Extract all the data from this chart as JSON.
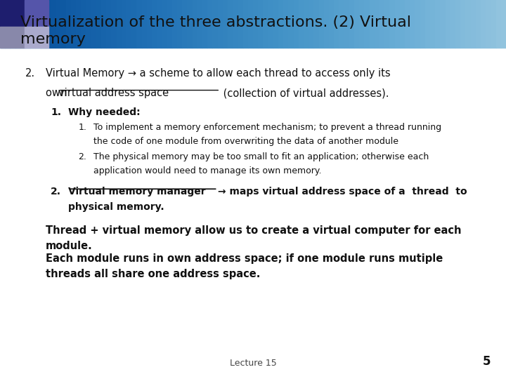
{
  "title_line1": "Virtualization of the three abstractions. (2) Virtual",
  "title_line2": "memory",
  "background_color": "#ffffff",
  "footer_text": "Lecture 15",
  "page_number": "5",
  "item2_label": "2.",
  "item2_text_line1": "Virtual Memory → a scheme to allow each thread to access only its",
  "item2_text_own": "own ",
  "item2_underline": "virtual address space",
  "item2_text_rest": " (collection of virtual addresses).",
  "sub1_label": "1.",
  "sub1_text": "Why needed:",
  "subsub1_label": "1.",
  "subsub1_text1": "To implement a memory enforcement mechanism; to prevent a thread running",
  "subsub1_text2": "the code of one module from overwriting the data of another module",
  "subsub2_label": "2.",
  "subsub2_text1": "The physical memory may be too small to fit an application; otherwise each",
  "subsub2_text2": "application would need to manage its own memory.",
  "sub2_label": "2.",
  "sub2_underline": "Virtual memory manager",
  "sub2_text": "→ maps virtual address space of a  thread  to",
  "sub2_text2": "physical memory.",
  "para1_line1": "Thread + virtual memory allow us to create a virtual computer for each",
  "para1_line2": "module.",
  "para2_line1": "Each module runs in own address space; if one module runs mutiple",
  "para2_line2": "threads all share one address space.",
  "sq_colors": [
    "#1e1e6e",
    "#5555aa",
    "#8888aa",
    "#aaaacc"
  ],
  "fs_main": 10.5,
  "fs_sub": 10.0,
  "fs_subsub": 9.0
}
